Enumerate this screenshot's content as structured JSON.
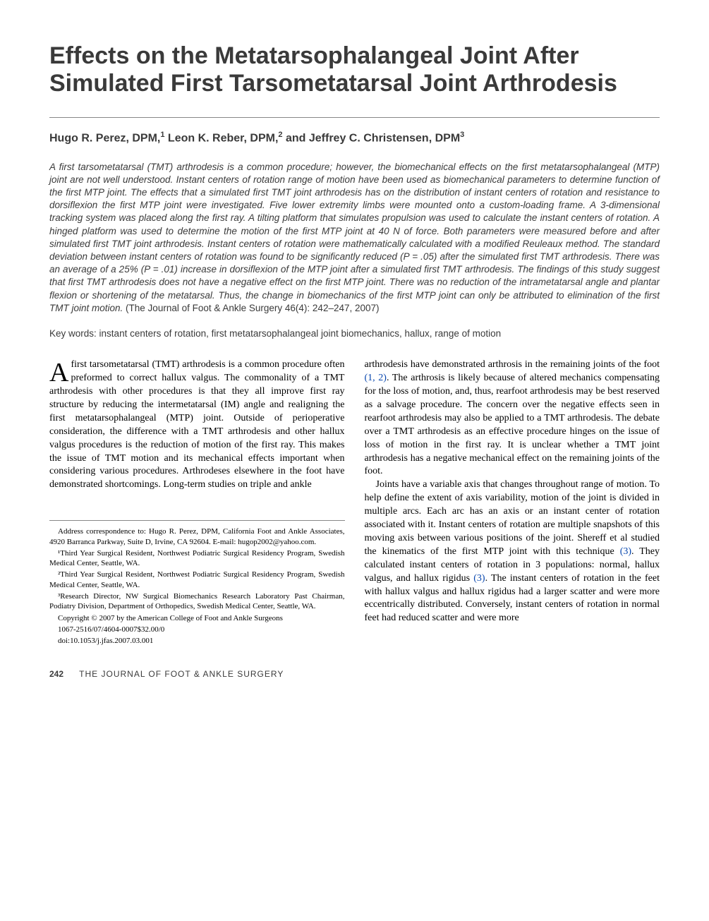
{
  "title": "Effects on the Metatarsophalangeal Joint After Simulated First Tarsometatarsal Joint Arthrodesis",
  "authors_html": "Hugo R. Perez, DPM,<sup>1</sup> Leon K. Reber, DPM,<sup>2</sup> and Jeffrey C. Christensen, DPM<sup>3</sup>",
  "abstract": "A first tarsometatarsal (TMT) arthrodesis is a common procedure; however, the biomechanical effects on the first metatarsophalangeal (MTP) joint are not well understood. Instant centers of rotation range of motion have been used as biomechanical parameters to determine function of the first MTP joint. The effects that a simulated first TMT joint arthrodesis has on the distribution of instant centers of rotation and resistance to dorsiflexion the first MTP joint were investigated. Five lower extremity limbs were mounted onto a custom-loading frame. A 3-dimensional tracking system was placed along the first ray. A tilting platform that simulates propulsion was used to calculate the instant centers of rotation. A hinged platform was used to determine the motion of the first MTP joint at 40 N of force. Both parameters were measured before and after simulated first TMT joint arthrodesis. Instant centers of rotation were mathematically calculated with a modified Reuleaux method. The standard deviation between instant centers of rotation was found to be significantly reduced (P = .05) after the simulated first TMT arthrodesis. There was an average of a 25% (P = .01) increase in dorsiflexion of the MTP joint after a simulated first TMT arthrodesis. The findings of this study suggest that first TMT arthrodesis does not have a negative effect on the first MTP joint. There was no reduction of the intrametatarsal angle and plantar flexion or shortening of the metatarsal. Thus, the change in biomechanics of the first MTP joint can only be attributed to elimination of the first TMT joint motion.",
  "citation": "(The Journal of Foot & Ankle Surgery 46(4): 242–247, 2007)",
  "keywords_label": "Key words:",
  "keywords": "instant centers of rotation, first metatarsophalangeal joint biomechanics, hallux, range of motion",
  "body": {
    "col1_dropcap": "A",
    "col1_p1": " first tarsometatarsal (TMT) arthrodesis is a common procedure often preformed to correct hallux valgus. The commonality of a TMT arthrodesis with other procedures is that they all improve first ray structure by reducing the intermetatarsal (IM) angle and realigning the first metatarsophalangeal (MTP) joint. Outside of perioperative consideration, the difference with a TMT arthrodesis and other hallux valgus procedures is the reduction of motion of the first ray. This makes the issue of TMT motion and its mechanical effects important when considering various procedures. Arthrodeses elsewhere in the foot have demonstrated shortcomings. Long-term studies on triple and ankle",
    "col2_p1_a": "arthrodesis have demonstrated arthrosis in the remaining joints of the foot ",
    "col2_p1_ref1": "(1, 2)",
    "col2_p1_b": ". The arthrosis is likely because of altered mechanics compensating for the loss of motion, and, thus, rearfoot arthrodesis may be best reserved as a salvage procedure. The concern over the negative effects seen in rearfoot arthrodesis may also be applied to a TMT arthrodesis. The debate over a TMT arthrodesis as an effective procedure hinges on the issue of loss of motion in the first ray. It is unclear whether a TMT joint arthrodesis has a negative mechanical effect on the remaining joints of the foot.",
    "col2_p2_a": "Joints have a variable axis that changes throughout range of motion. To help define the extent of axis variability, motion of the joint is divided in multiple arcs. Each arc has an axis or an instant center of rotation associated with it. Instant centers of rotation are multiple snapshots of this moving axis between various positions of the joint. Shereff et al studied the kinematics of the first MTP joint with this technique ",
    "col2_p2_ref1": "(3)",
    "col2_p2_b": ". They calculated instant centers of rotation in 3 populations: normal, hallux valgus, and hallux rigidus ",
    "col2_p2_ref2": "(3)",
    "col2_p2_c": ". The instant centers of rotation in the feet with hallux valgus and hallux rigidus had a larger scatter and were more eccentrically distributed. Conversely, instant centers of rotation in normal feet had reduced scatter and were more"
  },
  "footnotes": {
    "correspondence": "Address correspondence to: Hugo R. Perez, DPM, California Foot and Ankle Associates, 4920 Barranca Parkway, Suite D, Irvine, CA 92604. E-mail: hugop2002@yahoo.com.",
    "aff1": "¹Third Year Surgical Resident, Northwest Podiatric Surgical Residency Program, Swedish Medical Center, Seattle, WA.",
    "aff2": "²Third Year Surgical Resident, Northwest Podiatric Surgical Residency Program, Swedish Medical Center, Seattle, WA.",
    "aff3": "³Research Director, NW Surgical Biomechanics Research Laboratory Past Chairman, Podiatry Division, Department of Orthopedics, Swedish Medical Center, Seattle, WA.",
    "copyright": "Copyright © 2007 by the American College of Foot and Ankle Surgeons",
    "issn": "1067-2516/07/4604-0007$32.00/0",
    "doi": "doi:10.1053/j.jfas.2007.03.001"
  },
  "footer": {
    "page": "242",
    "journal": "THE JOURNAL OF FOOT & ANKLE SURGERY"
  },
  "colors": {
    "heading": "#3a3a3a",
    "divider": "#888888",
    "link": "#0645ad",
    "background": "#ffffff",
    "text": "#000000"
  },
  "typography": {
    "title_fontsize": 34,
    "authors_fontsize": 16,
    "abstract_fontsize": 13.5,
    "body_fontsize": 14,
    "footnote_fontsize": 11,
    "dropcap_fontsize": 38
  }
}
